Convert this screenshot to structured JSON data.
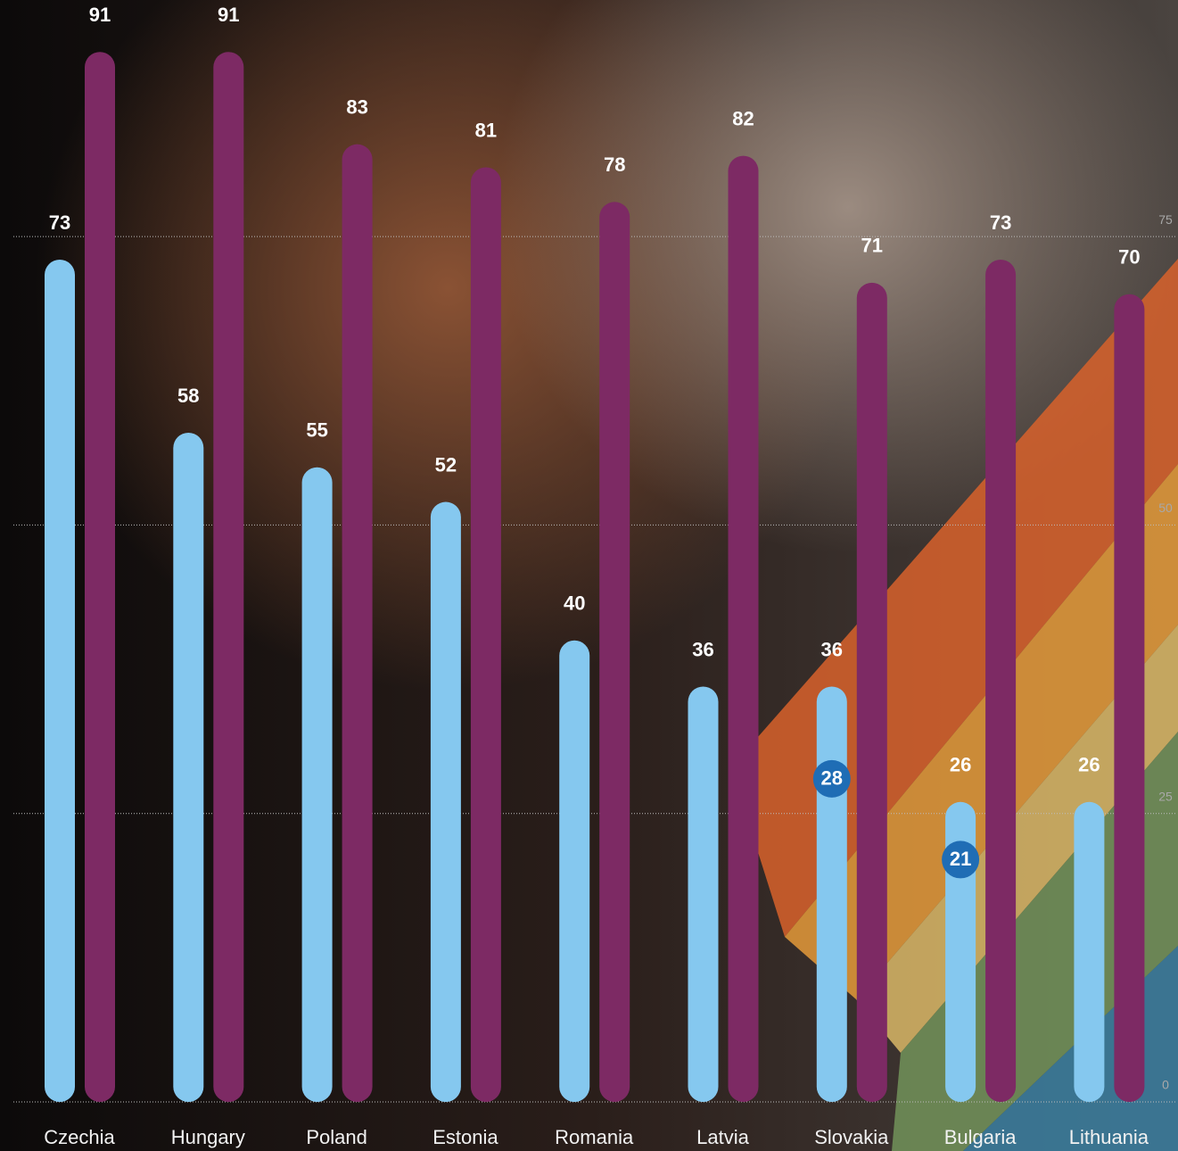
{
  "chart_data": {
    "type": "bar",
    "categories": [
      "Czechia",
      "Hungary",
      "Poland",
      "Estonia",
      "Romania",
      "Latvia",
      "Slovakia",
      "Bulgaria",
      "Lithuania"
    ],
    "series": [
      {
        "color": "#85c8ef",
        "values": [
          73,
          58,
          55,
          52,
          40,
          36,
          36,
          26,
          26
        ]
      },
      {
        "color": "#7d2a64",
        "values": [
          91,
          91,
          83,
          81,
          78,
          82,
          71,
          73,
          70
        ]
      },
      {
        "type": "dot",
        "color": "#1f6db5",
        "values": [
          null,
          null,
          null,
          null,
          null,
          null,
          28,
          21,
          null
        ]
      }
    ],
    "ylim": [
      0,
      95.5
    ],
    "yticks": [
      0,
      25,
      50,
      75
    ],
    "grid": true
  }
}
